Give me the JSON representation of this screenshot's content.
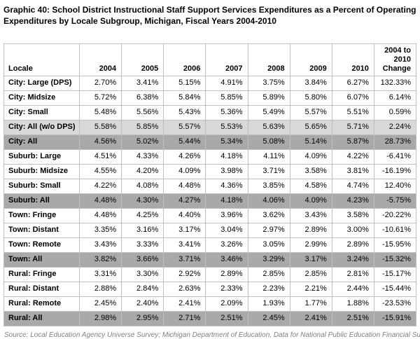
{
  "chart_data": {
    "type": "table",
    "title": "Graphic 40: School District Instructional Staff Support Services Expenditures as a Percent of Operating Expenditures by Locale Subgroup, Michigan, Fiscal Years 2004-2010",
    "columns": [
      "Locale",
      "2004",
      "2005",
      "2006",
      "2007",
      "2008",
      "2009",
      "2010",
      "2004 to 2010 Change"
    ],
    "rows": [
      {
        "locale": "City: Large (DPS)",
        "shade": "none",
        "values": [
          "2.70%",
          "3.41%",
          "5.15%",
          "4.91%",
          "3.75%",
          "3.84%",
          "6.27%",
          "132.33%"
        ]
      },
      {
        "locale": "City: Midsize",
        "shade": "none",
        "values": [
          "5.72%",
          "6.38%",
          "5.84%",
          "5.85%",
          "5.89%",
          "5.80%",
          "6.07%",
          "6.14%"
        ]
      },
      {
        "locale": "City: Small",
        "shade": "none",
        "values": [
          "5.48%",
          "5.56%",
          "5.43%",
          "5.36%",
          "5.49%",
          "5.57%",
          "5.51%",
          "0.59%"
        ]
      },
      {
        "locale": "City: All (w/o DPS)",
        "shade": "light",
        "values": [
          "5.58%",
          "5.85%",
          "5.57%",
          "5.53%",
          "5.63%",
          "5.65%",
          "5.71%",
          "2.24%"
        ]
      },
      {
        "locale": "City: All",
        "shade": "dark",
        "values": [
          "4.56%",
          "5.02%",
          "5.44%",
          "5.34%",
          "5.08%",
          "5.14%",
          "5.87%",
          "28.73%"
        ]
      },
      {
        "locale": "Suburb: Large",
        "shade": "none",
        "values": [
          "4.51%",
          "4.33%",
          "4.26%",
          "4.18%",
          "4.11%",
          "4.09%",
          "4.22%",
          "-6.41%"
        ]
      },
      {
        "locale": "Suburb: Midsize",
        "shade": "none",
        "values": [
          "4.55%",
          "4.20%",
          "4.09%",
          "3.98%",
          "3.71%",
          "3.58%",
          "3.81%",
          "-16.19%"
        ]
      },
      {
        "locale": "Suburb: Small",
        "shade": "none",
        "values": [
          "4.22%",
          "4.08%",
          "4.48%",
          "4.36%",
          "3.85%",
          "4.58%",
          "4.74%",
          "12.40%"
        ]
      },
      {
        "locale": "Suburb: All",
        "shade": "dark",
        "values": [
          "4.48%",
          "4.30%",
          "4.27%",
          "4.18%",
          "4.06%",
          "4.09%",
          "4.23%",
          "-5.75%"
        ]
      },
      {
        "locale": "Town: Fringe",
        "shade": "none",
        "values": [
          "4.48%",
          "4.25%",
          "4.40%",
          "3.96%",
          "3.62%",
          "3.43%",
          "3.58%",
          "-20.22%"
        ]
      },
      {
        "locale": "Town: Distant",
        "shade": "none",
        "values": [
          "3.35%",
          "3.16%",
          "3.17%",
          "3.04%",
          "2.97%",
          "2.89%",
          "3.00%",
          "-10.61%"
        ]
      },
      {
        "locale": "Town: Remote",
        "shade": "none",
        "values": [
          "3.43%",
          "3.33%",
          "3.41%",
          "3.26%",
          "3.05%",
          "2.99%",
          "2.89%",
          "-15.95%"
        ]
      },
      {
        "locale": "Town: All",
        "shade": "dark",
        "values": [
          "3.82%",
          "3.66%",
          "3.71%",
          "3.46%",
          "3.29%",
          "3.17%",
          "3.24%",
          "-15.32%"
        ]
      },
      {
        "locale": "Rural: Fringe",
        "shade": "none",
        "values": [
          "3.31%",
          "3.30%",
          "2.92%",
          "2.89%",
          "2.85%",
          "2.85%",
          "2.81%",
          "-15.17%"
        ]
      },
      {
        "locale": "Rural: Distant",
        "shade": "none",
        "values": [
          "2.88%",
          "2.84%",
          "2.63%",
          "2.33%",
          "2.23%",
          "2.21%",
          "2.44%",
          "-15.44%"
        ]
      },
      {
        "locale": "Rural: Remote",
        "shade": "none",
        "values": [
          "2.45%",
          "2.40%",
          "2.41%",
          "2.09%",
          "1.93%",
          "1.77%",
          "1.88%",
          "-23.53%"
        ]
      },
      {
        "locale": "Rural: All",
        "shade": "dark",
        "values": [
          "2.98%",
          "2.95%",
          "2.71%",
          "2.51%",
          "2.45%",
          "2.41%",
          "2.51%",
          "-15.91%"
        ]
      }
    ],
    "source": "Source: Local Education Agency Universe Survey; Michigan Department of Education, Data for National Public Education Financial Survey"
  },
  "colors": {
    "subtotal_row_light": "#d9d9d9",
    "total_row_dark": "#a9a9a9",
    "grid_border": "#bfbfbf",
    "source_text": "#7f7f7f"
  }
}
